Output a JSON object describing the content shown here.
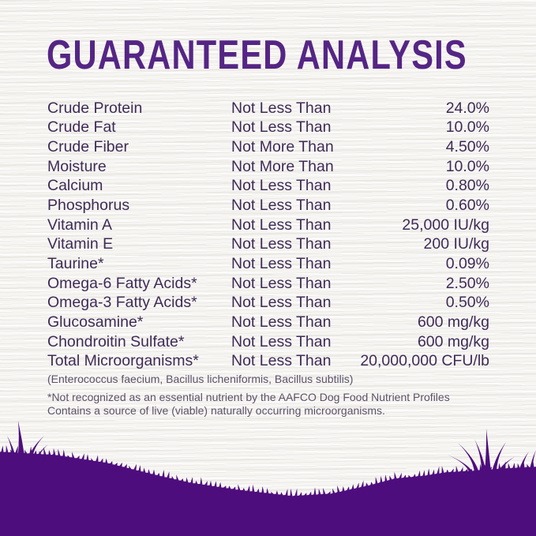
{
  "title": "GUARANTEED ANALYSIS",
  "colors": {
    "title": "#552585",
    "body_text": "#3f2b57",
    "footnote_text": "#5c5168",
    "silhouette": "#4e0d7d",
    "background": "#f6f5f2"
  },
  "table": {
    "rows": [
      {
        "nutrient": "Crude Protein",
        "relation": "Not Less Than",
        "value": "24.0%"
      },
      {
        "nutrient": "Crude Fat",
        "relation": "Not Less Than",
        "value": "10.0%"
      },
      {
        "nutrient": "Crude Fiber",
        "relation": "Not More Than",
        "value": "4.50%"
      },
      {
        "nutrient": "Moisture",
        "relation": "Not More Than",
        "value": "10.0%"
      },
      {
        "nutrient": "Calcium",
        "relation": "Not Less Than",
        "value": "0.80%"
      },
      {
        "nutrient": "Phosphorus",
        "relation": "Not Less Than",
        "value": "0.60%"
      },
      {
        "nutrient": "Vitamin A",
        "relation": "Not Less Than",
        "value": "25,000 IU/kg"
      },
      {
        "nutrient": "Vitamin E",
        "relation": "Not Less Than",
        "value": "200 IU/kg"
      },
      {
        "nutrient": "Taurine*",
        "relation": "Not Less Than",
        "value": "0.09%"
      },
      {
        "nutrient": "Omega-6 Fatty Acids*",
        "relation": "Not Less Than",
        "value": "2.50%"
      },
      {
        "nutrient": "Omega-3 Fatty Acids*",
        "relation": "Not Less Than",
        "value": "0.50%"
      },
      {
        "nutrient": "Glucosamine*",
        "relation": "Not Less Than",
        "value": "600 mg/kg"
      },
      {
        "nutrient": "Chondroitin Sulfate*",
        "relation": "Not Less Than",
        "value": "600 mg/kg"
      },
      {
        "nutrient": "Total Microorganisms*",
        "relation": "Not Less Than",
        "value": "20,000,000 CFU/lb"
      }
    ]
  },
  "microorganisms_note": "(Enterococcus faecium, Bacillus licheniformis, Bacillus subtilis)",
  "footnotes": [
    "*Not recognized as an essential nutrient by the AAFCO Dog Food Nutrient Profiles",
    "Contains a source of live (viable) naturally occurring microorganisms."
  ]
}
